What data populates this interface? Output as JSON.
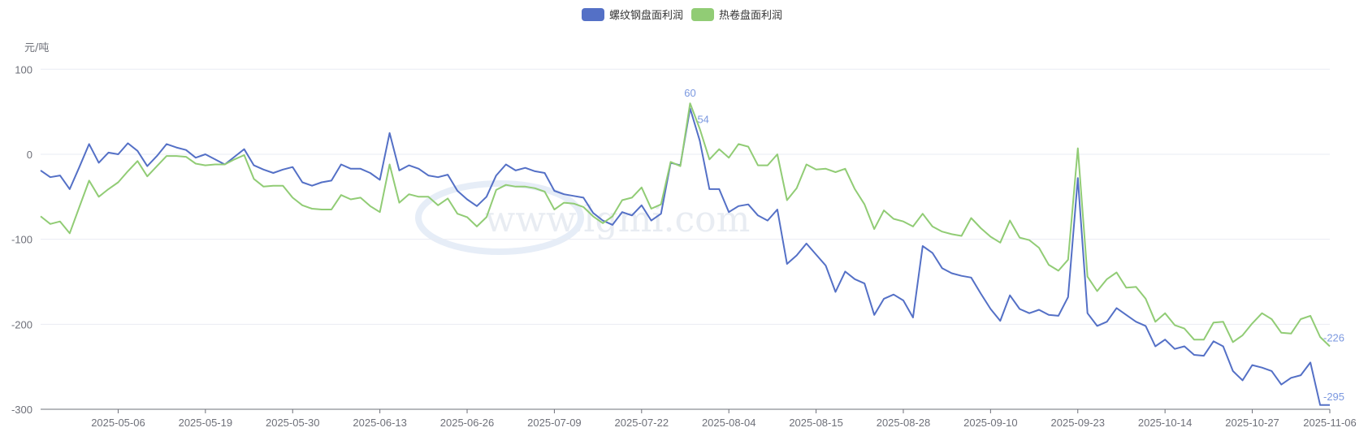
{
  "chart_data": {
    "type": "line",
    "unit_label": "元/吨",
    "ylim": [
      -300,
      100
    ],
    "y_ticks": [
      100,
      0,
      -100,
      -200,
      -300
    ],
    "grid": true,
    "legend_placement": "top",
    "watermark": "www.lgmi.com",
    "x": [
      "2025-04-21",
      "2025-04-22",
      "2025-04-23",
      "2025-04-24",
      "2025-04-25",
      "2025-04-28",
      "2025-04-29",
      "2025-04-30",
      "2025-05-06",
      "2025-05-07",
      "2025-05-08",
      "2025-05-09",
      "2025-05-12",
      "2025-05-13",
      "2025-05-14",
      "2025-05-15",
      "2025-05-16",
      "2025-05-19",
      "2025-05-20",
      "2025-05-21",
      "2025-05-22",
      "2025-05-23",
      "2025-05-26",
      "2025-05-27",
      "2025-05-28",
      "2025-05-29",
      "2025-05-30",
      "2025-06-03",
      "2025-06-04",
      "2025-06-05",
      "2025-06-06",
      "2025-06-09",
      "2025-06-10",
      "2025-06-11",
      "2025-06-12",
      "2025-06-13",
      "2025-06-16",
      "2025-06-17",
      "2025-06-18",
      "2025-06-19",
      "2025-06-20",
      "2025-06-23",
      "2025-06-24",
      "2025-06-25",
      "2025-06-26",
      "2025-06-27",
      "2025-06-30",
      "2025-07-01",
      "2025-07-02",
      "2025-07-03",
      "2025-07-04",
      "2025-07-07",
      "2025-07-08",
      "2025-07-09",
      "2025-07-10",
      "2025-07-11",
      "2025-07-14",
      "2025-07-15",
      "2025-07-16",
      "2025-07-17",
      "2025-07-18",
      "2025-07-21",
      "2025-07-22",
      "2025-07-23",
      "2025-07-24",
      "2025-07-25",
      "2025-07-28",
      "2025-07-29",
      "2025-07-30",
      "2025-07-31",
      "2025-08-01",
      "2025-08-04",
      "2025-08-05",
      "2025-08-06",
      "2025-08-07",
      "2025-08-08",
      "2025-08-11",
      "2025-08-12",
      "2025-08-13",
      "2025-08-14",
      "2025-08-15",
      "2025-08-18",
      "2025-08-19",
      "2025-08-20",
      "2025-08-21",
      "2025-08-22",
      "2025-08-25",
      "2025-08-26",
      "2025-08-27",
      "2025-08-28",
      "2025-08-29",
      "2025-09-01",
      "2025-09-02",
      "2025-09-03",
      "2025-09-04",
      "2025-09-05",
      "2025-09-08",
      "2025-09-09",
      "2025-09-10",
      "2025-09-11",
      "2025-09-12",
      "2025-09-15",
      "2025-09-16",
      "2025-09-17",
      "2025-09-18",
      "2025-09-19",
      "2025-09-22",
      "2025-09-23",
      "2025-09-24",
      "2025-09-25",
      "2025-09-26",
      "2025-09-29",
      "2025-09-30",
      "2025-10-09",
      "2025-10-10",
      "2025-10-13",
      "2025-10-14",
      "2025-10-15",
      "2025-10-16",
      "2025-10-17",
      "2025-10-20",
      "2025-10-21",
      "2025-10-22",
      "2025-10-23",
      "2025-10-24",
      "2025-10-27",
      "2025-10-28",
      "2025-10-29",
      "2025-10-30",
      "2025-10-31",
      "2025-11-03",
      "2025-11-04",
      "2025-11-05",
      "2025-11-06"
    ],
    "x_tick_labels": [
      "2025-05-06",
      "2025-05-19",
      "2025-05-30",
      "2025-06-13",
      "2025-06-26",
      "2025-07-09",
      "2025-07-22",
      "2025-08-04",
      "2025-08-15",
      "2025-08-28",
      "2025-09-10",
      "2025-09-23",
      "2025-10-14",
      "2025-10-27",
      "2025-11-06"
    ],
    "series": [
      {
        "name": "螺纹钢盘面利润",
        "color": "#5470c6",
        "values": [
          -19,
          -27,
          -25,
          -41,
          -15,
          12,
          -10,
          2,
          0,
          13,
          4,
          -14,
          -2,
          12,
          8,
          5,
          -4,
          0,
          -6,
          -12,
          -3,
          6,
          -13,
          -18,
          -22,
          -18,
          -15,
          -33,
          -37,
          -33,
          -31,
          -12,
          -17,
          -17,
          -22,
          -30,
          25,
          -19,
          -13,
          -17,
          -25,
          -27,
          -24,
          -43,
          -53,
          -61,
          -50,
          -25,
          -12,
          -19,
          -16,
          -20,
          -22,
          -43,
          -47,
          -49,
          -51,
          -69,
          -78,
          -83,
          -68,
          -72,
          -60,
          -78,
          -70,
          -10,
          -13,
          54,
          16,
          -41,
          -41,
          -68,
          -61,
          -59,
          -72,
          -78,
          -65,
          -129,
          -119,
          -105,
          -118,
          -131,
          -162,
          -138,
          -147,
          -152,
          -189,
          -170,
          -165,
          -172,
          -192,
          -108,
          -116,
          -134,
          -140,
          -143,
          -145,
          -164,
          -182,
          -196,
          -166,
          -182,
          -187,
          -183,
          -189,
          -190,
          -168,
          -28,
          -187,
          -202,
          -197,
          -181,
          -189,
          -197,
          -202,
          -226,
          -218,
          -229,
          -226,
          -236,
          -237,
          -220,
          -226,
          -255,
          -266,
          -248,
          -251,
          -255,
          -271,
          -263,
          -260,
          -245,
          -295,
          -295
        ],
        "labels": [
          {
            "point": "2025-07-29",
            "text": "54"
          },
          {
            "point": "2025-11-06",
            "text": "-295"
          }
        ]
      },
      {
        "name": "热卷盘面利润",
        "color": "#91cc75",
        "values": [
          -73,
          -82,
          -79,
          -93,
          -62,
          -31,
          -50,
          -41,
          -33,
          -20,
          -8,
          -26,
          -14,
          -2,
          -2,
          -3,
          -11,
          -13,
          -12,
          -12,
          -6,
          -1,
          -29,
          -38,
          -37,
          -37,
          -51,
          -60,
          -64,
          -65,
          -65,
          -48,
          -53,
          -51,
          -61,
          -68,
          -12,
          -57,
          -47,
          -50,
          -50,
          -60,
          -52,
          -70,
          -74,
          -85,
          -74,
          -42,
          -36,
          -38,
          -38,
          -40,
          -44,
          -65,
          -57,
          -58,
          -62,
          -73,
          -81,
          -73,
          -54,
          -51,
          -39,
          -64,
          -59,
          -9,
          -14,
          60,
          30,
          -6,
          6,
          -4,
          12,
          9,
          -13,
          -13,
          0,
          -54,
          -40,
          -12,
          -18,
          -17,
          -21,
          -17,
          -41,
          -59,
          -88,
          -66,
          -76,
          -79,
          -85,
          -70,
          -85,
          -91,
          -94,
          -96,
          -75,
          -87,
          -97,
          -104,
          -78,
          -98,
          -101,
          -110,
          -130,
          -137,
          -124,
          7,
          -144,
          -161,
          -147,
          -139,
          -157,
          -156,
          -170,
          -197,
          -187,
          -201,
          -205,
          -218,
          -218,
          -198,
          -197,
          -221,
          -213,
          -199,
          -187,
          -194,
          -210,
          -211,
          -194,
          -190,
          -215,
          -226
        ],
        "labels": [
          {
            "point": "2025-07-29",
            "text": "60"
          },
          {
            "point": "2025-11-06",
            "text": "-226"
          }
        ]
      }
    ],
    "label_color": "#7b98e0"
  }
}
